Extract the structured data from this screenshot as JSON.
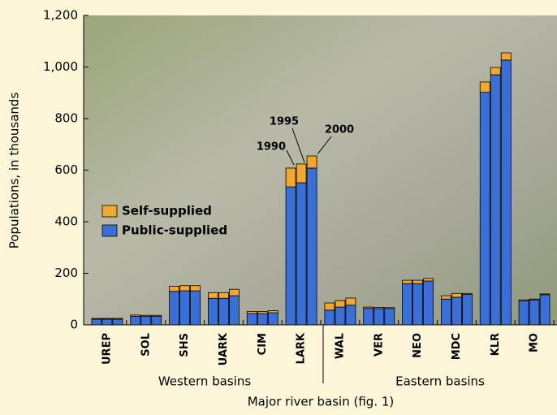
{
  "chart_data": {
    "type": "stacked-grouped-bar",
    "ylabel": "Populations, in thousands",
    "xlabel": "Major river basin (fig. 1)",
    "group_labels": [
      "Western basins",
      "Eastern basins"
    ],
    "annotations": [
      "1990",
      "1995",
      "2000"
    ],
    "categories": [
      "UREP",
      "SOL",
      "SHS",
      "UARK",
      "CIM",
      "LARK",
      "WAL",
      "VER",
      "NEO",
      "MDC",
      "KLR",
      "MO"
    ],
    "series": [
      {
        "name": "Public-supplied",
        "color": "#3a6fd8",
        "values": [
          [
            22,
            22,
            22
          ],
          [
            33,
            33,
            33
          ],
          [
            130,
            132,
            132
          ],
          [
            103,
            103,
            113
          ],
          [
            44,
            44,
            47
          ],
          [
            535,
            551,
            608
          ],
          [
            57,
            69,
            76
          ],
          [
            64,
            63,
            63
          ],
          [
            160,
            160,
            170
          ],
          [
            100,
            107,
            118
          ],
          [
            902,
            970,
            1027
          ],
          [
            93,
            97,
            117
          ]
        ]
      },
      {
        "name": "Self-supplied",
        "color": "#f0a830",
        "values": [
          [
            3,
            3,
            3
          ],
          [
            5,
            4,
            4
          ],
          [
            20,
            20,
            20
          ],
          [
            22,
            22,
            25
          ],
          [
            8,
            8,
            8
          ],
          [
            73,
            73,
            47
          ],
          [
            28,
            25,
            28
          ],
          [
            5,
            5,
            4
          ],
          [
            13,
            13,
            10
          ],
          [
            13,
            15,
            4
          ],
          [
            40,
            28,
            28
          ],
          [
            4,
            3,
            3
          ]
        ]
      }
    ],
    "ylim": [
      0,
      1200
    ],
    "yticks": [
      0,
      200,
      400,
      600,
      800,
      {
        "value": 1000,
        "label": "1,000"
      },
      {
        "value": 1200,
        "label": "1,200"
      }
    ],
    "legend": "left"
  }
}
